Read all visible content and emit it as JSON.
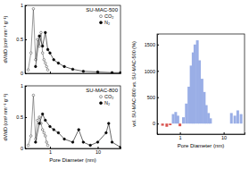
{
  "chart_data": [
    {
      "type": "line",
      "title": "SU-MAC-500",
      "y_label": "dV/dD (cm³ nm⁻¹ g⁻¹)",
      "log": "x",
      "xlim": [
        0.3,
        30
      ],
      "xticks": [
        1,
        10
      ],
      "ylim": [
        0,
        1
      ],
      "yticks": [
        0,
        0.5,
        1
      ],
      "tick_labels": "y",
      "series": [
        {
          "name": "CO₂",
          "color": "#555555",
          "marker": "circle-open",
          "x": [
            0.35,
            0.4,
            0.45,
            0.5,
            0.55,
            0.6,
            0.65,
            0.7,
            0.75,
            0.8,
            0.85,
            0.9
          ],
          "values": [
            0.05,
            0.3,
            0.95,
            0.2,
            0.5,
            0.4,
            0.6,
            0.3,
            0.2,
            0.15,
            0.1,
            0.05
          ]
        },
        {
          "name": "N₂",
          "color": "#000000",
          "marker": "circle",
          "x": [
            0.5,
            0.6,
            0.7,
            0.8,
            0.9,
            1,
            1.2,
            1.5,
            2,
            3,
            5,
            10,
            20,
            30
          ],
          "values": [
            0.1,
            0.55,
            0.4,
            0.6,
            0.35,
            0.3,
            0.2,
            0.15,
            0.1,
            0.06,
            0.03,
            0.02,
            0.01,
            0.01
          ]
        }
      ]
    },
    {
      "type": "line",
      "title": "SU-MAC-800",
      "x_label": "Pore Diameter (nm)",
      "y_label": "dV/dD (cm³ nm⁻¹ g⁻¹)",
      "log": "x",
      "xlim": [
        0.3,
        30
      ],
      "xticks": [
        1,
        10
      ],
      "ylim": [
        0,
        1
      ],
      "yticks": [
        0,
        0.5,
        1
      ],
      "series": [
        {
          "name": "CO₂",
          "color": "#555555",
          "marker": "circle-open",
          "x": [
            0.35,
            0.4,
            0.45,
            0.5,
            0.55,
            0.6,
            0.65,
            0.7,
            0.75,
            0.8,
            0.85,
            0.9
          ],
          "values": [
            0.05,
            0.2,
            0.85,
            0.15,
            0.45,
            0.5,
            0.4,
            0.3,
            0.25,
            0.2,
            0.1,
            0.05
          ]
        },
        {
          "name": "N₂",
          "color": "#000000",
          "marker": "circle",
          "x": [
            0.5,
            0.6,
            0.7,
            0.8,
            1,
            1.2,
            1.5,
            2,
            3,
            4,
            5,
            7,
            10,
            15,
            17,
            20,
            30
          ],
          "values": [
            0.1,
            0.4,
            0.55,
            0.45,
            0.35,
            0.3,
            0.25,
            0.15,
            0.1,
            0.3,
            0.1,
            0.05,
            0.1,
            0.25,
            0.4,
            0.1,
            0.02
          ]
        }
      ]
    },
    {
      "type": "bar",
      "x_label": "Pore Diameter (nm)",
      "y_label": "vol. SU-MAC-800 vs. SU-MAC-500 (%)",
      "log": "x",
      "xlim": [
        0.3,
        30
      ],
      "xticks": [
        1,
        10
      ],
      "ylim": [
        -200,
        1700
      ],
      "yticks": [
        0,
        500,
        1000,
        1500
      ],
      "x": [
        0.4,
        0.5,
        0.6,
        0.7,
        0.8,
        0.9,
        1.0,
        1.2,
        1.4,
        1.6,
        1.8,
        2.0,
        2.2,
        2.5,
        2.8,
        3.2,
        3.6,
        4.0,
        4.5,
        5.0,
        15,
        18,
        21,
        25
      ],
      "values": [
        -40,
        -60,
        -30,
        180,
        220,
        150,
        -50,
        120,
        380,
        700,
        1100,
        1350,
        1500,
        1580,
        1200,
        850,
        600,
        350,
        200,
        100,
        200,
        150,
        250,
        180
      ],
      "colors": [
        "#d9534f",
        "#d9534f",
        "#d9534f",
        "#9aaee6",
        "#9aaee6",
        "#9aaee6",
        "#d9534f",
        "#9aaee6",
        "#9aaee6",
        "#9aaee6",
        "#9aaee6",
        "#9aaee6",
        "#9aaee6",
        "#9aaee6",
        "#9aaee6",
        "#9aaee6",
        "#9aaee6",
        "#9aaee6",
        "#9aaee6",
        "#9aaee6",
        "#9aaee6",
        "#9aaee6",
        "#9aaee6",
        "#9aaee6"
      ]
    }
  ]
}
